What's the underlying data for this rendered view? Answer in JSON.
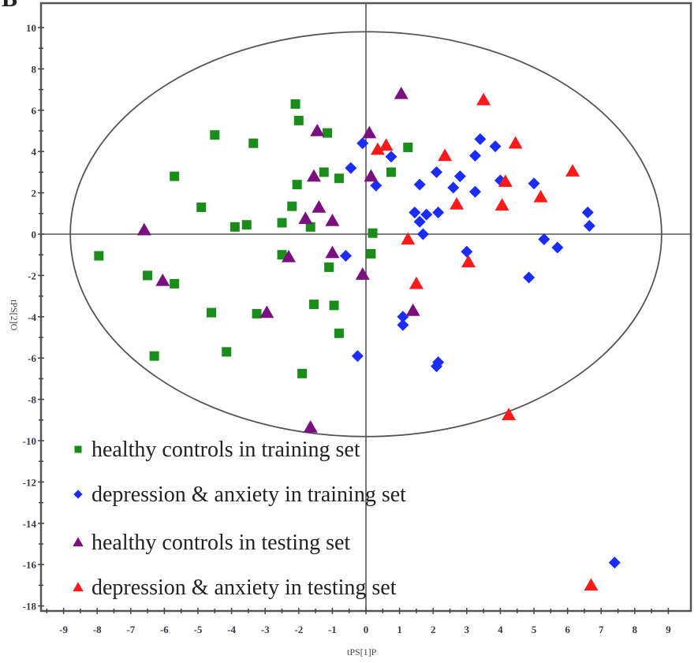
{
  "chart_data": {
    "type": "scatter",
    "panel_label": "B",
    "title": "",
    "xlabel": "tPS[1]P",
    "ylabel": "tPS[2]O",
    "xlim": [
      -10,
      9.8
    ],
    "ylim": [
      -18.2,
      11.2
    ],
    "xticks": [
      -9,
      -8,
      -7,
      -6,
      -5,
      -4,
      -3,
      -2,
      -1,
      0,
      1,
      2,
      3,
      4,
      5,
      6,
      7,
      8,
      9
    ],
    "yticks": [
      10,
      8,
      6,
      4,
      2,
      0,
      -2,
      -4,
      -6,
      -8,
      -10,
      -12,
      -14,
      -16,
      -18
    ],
    "grid": false,
    "hotelling_ellipse": {
      "center": [
        0,
        0
      ],
      "rx": 8.8,
      "ry": 9.8
    },
    "legend_position": "bottom-left",
    "series": [
      {
        "name": "healthy controls in training set",
        "marker": "square",
        "color": "#1a8c1a",
        "points": [
          [
            -4.5,
            4.8
          ],
          [
            -5.7,
            2.8
          ],
          [
            -4.9,
            1.3
          ],
          [
            -2.1,
            6.3
          ],
          [
            -2.0,
            5.5
          ],
          [
            -1.15,
            4.9
          ],
          [
            -3.35,
            4.4
          ],
          [
            -1.25,
            3.0
          ],
          [
            -0.8,
            2.7
          ],
          [
            -2.05,
            2.4
          ],
          [
            -2.2,
            1.35
          ],
          [
            -3.9,
            0.35
          ],
          [
            -3.55,
            0.45
          ],
          [
            -2.5,
            0.55
          ],
          [
            -1.65,
            0.35
          ],
          [
            1.25,
            4.2
          ],
          [
            0.75,
            3.0
          ],
          [
            0.2,
            0.05
          ],
          [
            -7.95,
            -1.05
          ],
          [
            -6.5,
            -2.0
          ],
          [
            -5.7,
            -2.4
          ],
          [
            -4.6,
            -3.8
          ],
          [
            -6.3,
            -5.9
          ],
          [
            -2.5,
            -1.0
          ],
          [
            0.15,
            -0.95
          ],
          [
            -1.1,
            -1.6
          ],
          [
            -1.55,
            -3.4
          ],
          [
            -0.95,
            -3.45
          ],
          [
            -3.25,
            -3.85
          ],
          [
            -0.8,
            -4.8
          ],
          [
            -4.15,
            -5.7
          ],
          [
            -1.9,
            -6.75
          ]
        ]
      },
      {
        "name": "depression & anxiety in training set",
        "marker": "diamond",
        "color": "#1a2cff",
        "points": [
          [
            -0.1,
            4.4
          ],
          [
            -0.45,
            3.2
          ],
          [
            0.75,
            3.75
          ],
          [
            0.3,
            2.35
          ],
          [
            3.4,
            4.6
          ],
          [
            3.85,
            4.25
          ],
          [
            3.25,
            3.8
          ],
          [
            2.1,
            3.0
          ],
          [
            2.8,
            2.8
          ],
          [
            1.6,
            2.4
          ],
          [
            2.6,
            2.25
          ],
          [
            3.25,
            2.05
          ],
          [
            4.0,
            2.6
          ],
          [
            1.45,
            1.05
          ],
          [
            1.8,
            0.95
          ],
          [
            2.15,
            1.05
          ],
          [
            1.6,
            0.6
          ],
          [
            1.7,
            0.0
          ],
          [
            5.0,
            2.45
          ],
          [
            6.6,
            1.05
          ],
          [
            6.65,
            0.4
          ],
          [
            5.3,
            -0.25
          ],
          [
            5.7,
            -0.65
          ],
          [
            4.85,
            -2.1
          ],
          [
            -0.6,
            -1.05
          ],
          [
            -0.25,
            -5.9
          ],
          [
            3.0,
            -0.85
          ],
          [
            1.1,
            -4.0
          ],
          [
            1.1,
            -4.4
          ],
          [
            2.15,
            -6.2
          ],
          [
            2.1,
            -6.4
          ],
          [
            7.4,
            -15.9
          ]
        ]
      },
      {
        "name": "healthy controls  in testing set",
        "marker": "triangle",
        "color": "#7a1080",
        "points": [
          [
            -6.6,
            0.2
          ],
          [
            -1.45,
            5.0
          ],
          [
            -1.55,
            2.8
          ],
          [
            -1.4,
            1.3
          ],
          [
            -1.8,
            0.75
          ],
          [
            -1.0,
            0.65
          ],
          [
            1.05,
            6.8
          ],
          [
            0.1,
            4.9
          ],
          [
            0.15,
            2.8
          ],
          [
            -6.05,
            -2.25
          ],
          [
            -2.3,
            -1.1
          ],
          [
            -1.0,
            -0.9
          ],
          [
            -0.1,
            -1.95
          ],
          [
            -2.95,
            -3.8
          ],
          [
            1.4,
            -3.7
          ],
          [
            -1.65,
            -9.35
          ]
        ]
      },
      {
        "name": "depression & anxiety in testing set",
        "marker": "triangle",
        "color": "#ff1a1a",
        "points": [
          [
            3.5,
            6.5
          ],
          [
            0.35,
            4.1
          ],
          [
            0.6,
            4.3
          ],
          [
            2.35,
            3.8
          ],
          [
            4.45,
            4.4
          ],
          [
            4.15,
            2.55
          ],
          [
            2.7,
            1.45
          ],
          [
            4.05,
            1.4
          ],
          [
            6.15,
            3.05
          ],
          [
            5.2,
            1.8
          ],
          [
            1.25,
            -0.25
          ],
          [
            3.05,
            -1.35
          ],
          [
            1.5,
            -2.4
          ],
          [
            4.25,
            -8.75
          ],
          [
            6.7,
            -17.0
          ]
        ]
      }
    ]
  }
}
